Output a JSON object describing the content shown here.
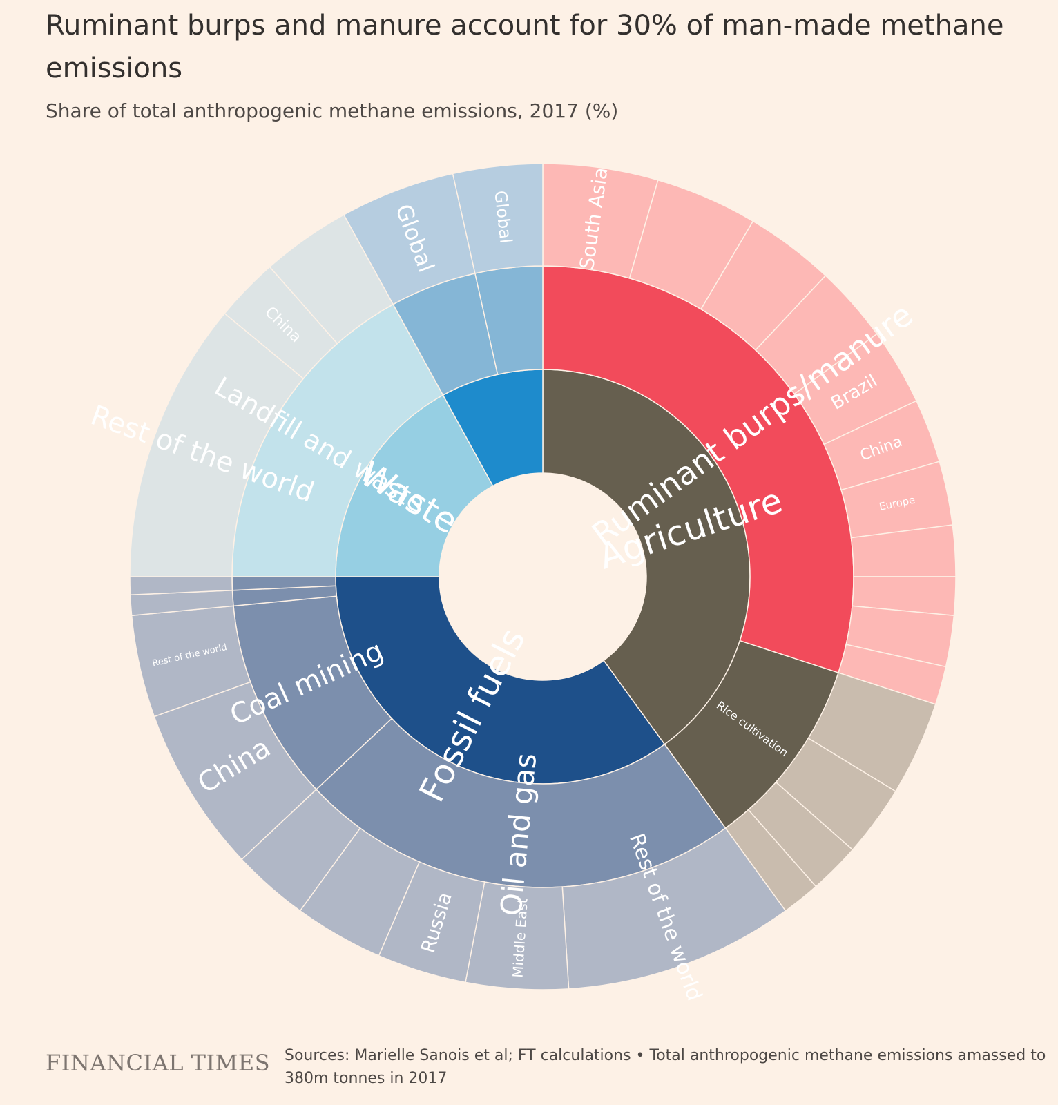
{
  "chart_data": {
    "type": "sunburst",
    "title": "Ruminant burps and manure account for 30% of man-made methane emissions",
    "subtitle": "Share of total anthropogenic methane emissions, 2017 (%)",
    "rings": [
      [
        {
          "label": "Agriculture",
          "value": 40,
          "color": "#665f4f"
        },
        {
          "label": "Fossil fuels",
          "value": 35,
          "color": "#1e508a"
        },
        {
          "label": "Waste",
          "value": 17,
          "color": "#96cfe3"
        },
        {
          "label": "",
          "value": 8,
          "color": "#1e8bcc"
        }
      ],
      [
        {
          "label": "Ruminant burps/manure",
          "value": 30,
          "color": "#f24b5b"
        },
        {
          "label": "Rice cultivation",
          "value": 10,
          "color": "#665f4f"
        },
        {
          "label": "Oil and gas",
          "value": 23,
          "color": "#7c8fad"
        },
        {
          "label": "Coal mining",
          "value": 10.5,
          "color": "#7c8fad"
        },
        {
          "label": "",
          "value": 0.8,
          "color": "#7c8fad"
        },
        {
          "label": "",
          "value": 0.7,
          "color": "#7c8fad"
        },
        {
          "label": "Landfill and waste",
          "value": 17,
          "color": "#c2e2eb"
        },
        {
          "label": "",
          "value": 4.5,
          "color": "#85b6d6"
        },
        {
          "label": "",
          "value": 3.5,
          "color": "#85b6d6"
        }
      ],
      [
        {
          "label": "South Asia",
          "value": 4.5,
          "color": "#fdb8b5"
        },
        {
          "label": "",
          "value": 4.0,
          "color": "#fdb8b5"
        },
        {
          "label": "",
          "value": 3.5,
          "color": "#fdb8b5"
        },
        {
          "label": "",
          "value": 3.0,
          "color": "#fdb8b5"
        },
        {
          "label": "Brazil",
          "value": 3.0,
          "color": "#fdb8b5"
        },
        {
          "label": "China",
          "value": 2.5,
          "color": "#fdb8b5"
        },
        {
          "label": "Europe",
          "value": 2.5,
          "color": "#fdb8b5"
        },
        {
          "label": "",
          "value": 2.0,
          "color": "#fdb8b5"
        },
        {
          "label": "",
          "value": 1.5,
          "color": "#fdb8b5"
        },
        {
          "label": "",
          "value": 2.0,
          "color": "#fdb8b5"
        },
        {
          "label": "",
          "value": 1.5,
          "color": "#fdb8b5"
        },
        {
          "label": "",
          "value": 3.7,
          "color": "#c9bcae"
        },
        {
          "label": "",
          "value": 2.8,
          "color": "#c9bcae"
        },
        {
          "label": "",
          "value": 2.0,
          "color": "#c9bcae"
        },
        {
          "label": "",
          "value": 1.5,
          "color": "#c9bcae"
        },
        {
          "label": "Rest of the world",
          "value": 9.0,
          "color": "#b0b7c6"
        },
        {
          "label": "Middle East",
          "value": 4.0,
          "color": "#b0b7c6"
        },
        {
          "label": "Russia",
          "value": 3.5,
          "color": "#b0b7c6"
        },
        {
          "label": "",
          "value": 3.5,
          "color": "#b0b7c6"
        },
        {
          "label": "",
          "value": 3.0,
          "color": "#b0b7c6"
        },
        {
          "label": "China",
          "value": 6.5,
          "color": "#b0b7c6"
        },
        {
          "label": "Rest of the world",
          "value": 4.0,
          "color": "#b0b7c6"
        },
        {
          "label": "",
          "value": 0.8,
          "color": "#b0b7c6"
        },
        {
          "label": "",
          "value": 0.7,
          "color": "#b0b7c6"
        },
        {
          "label": "Rest of the world",
          "value": 11.0,
          "color": "#dde4e5"
        },
        {
          "label": "China",
          "value": 2.5,
          "color": "#dde4e5"
        },
        {
          "label": "",
          "value": 3.5,
          "color": "#dde4e5"
        },
        {
          "label": "Global",
          "value": 4.5,
          "color": "#b6cde0"
        },
        {
          "label": "Global",
          "value": 3.5,
          "color": "#b6cde0"
        }
      ]
    ],
    "label_sizes": [
      [
        50,
        50,
        50,
        20
      ],
      [
        46,
        16,
        42,
        40,
        16,
        16,
        38,
        16,
        16
      ],
      [
        28,
        28,
        28,
        28,
        26,
        22,
        15,
        15,
        15,
        15,
        15,
        15,
        15,
        15,
        15,
        30,
        20,
        28,
        20,
        20,
        40,
        13,
        12,
        12,
        40,
        22,
        20,
        32,
        24
      ]
    ]
  },
  "footer": {
    "brand": "FINANCIAL TIMES",
    "source": "Sources: Marielle Sanois et al; FT calculations • Total anthropogenic methane emissions amassed to 380m tonnes in 2017"
  }
}
